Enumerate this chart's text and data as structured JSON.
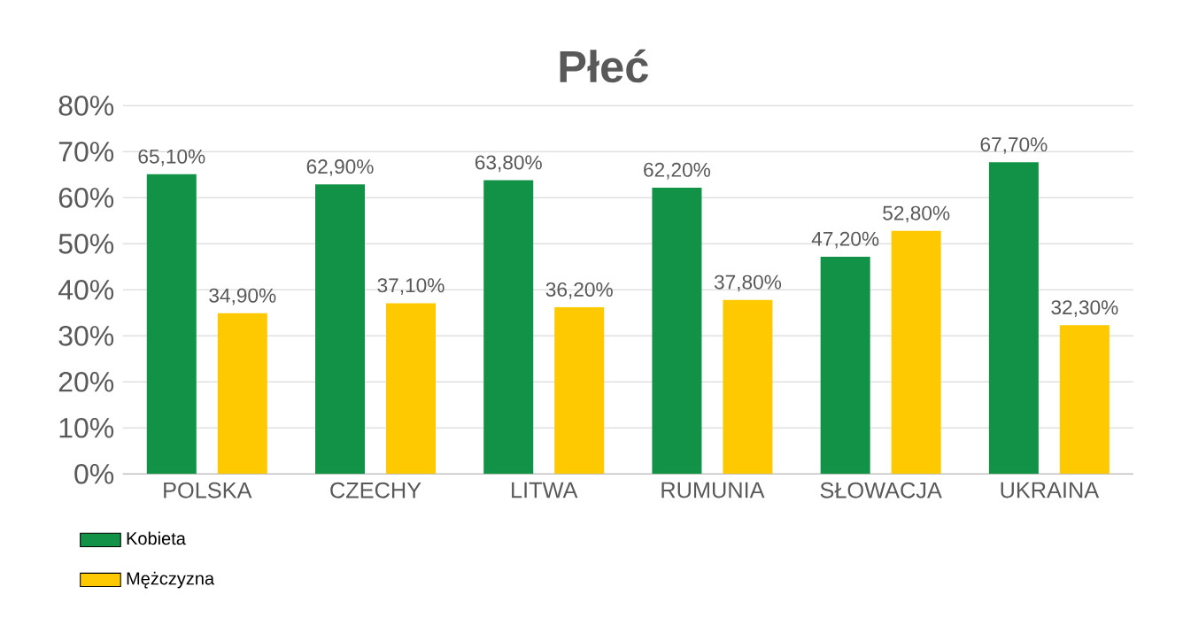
{
  "chart_data": {
    "type": "bar",
    "title": "Płeć",
    "categories": [
      "POLSKA",
      "CZECHY",
      "LITWA",
      "RUMUNIA",
      "SŁOWACJA",
      "UKRAINA"
    ],
    "series": [
      {
        "name": "Kobieta",
        "color": "#129247",
        "values": [
          65.1,
          62.9,
          63.8,
          62.2,
          47.2,
          67.7
        ],
        "value_labels": [
          "65,10%",
          "62,90%",
          "63,80%",
          "62,20%",
          "47,20%",
          "67,70%"
        ]
      },
      {
        "name": "Mężczyzna",
        "color": "#ffc900",
        "values": [
          34.9,
          37.1,
          36.2,
          37.8,
          52.8,
          32.3
        ],
        "value_labels": [
          "34,90%",
          "37,10%",
          "36,20%",
          "37,80%",
          "52,80%",
          "32,30%"
        ]
      }
    ],
    "ylim": [
      0,
      80
    ],
    "yticks": [
      {
        "value": 0,
        "label": "0%"
      },
      {
        "value": 10,
        "label": "10%"
      },
      {
        "value": 20,
        "label": "20%"
      },
      {
        "value": 30,
        "label": "30%"
      },
      {
        "value": 40,
        "label": "40%"
      },
      {
        "value": 50,
        "label": "50%"
      },
      {
        "value": 60,
        "label": "60%"
      },
      {
        "value": 70,
        "label": "70%"
      },
      {
        "value": 80,
        "label": "80%"
      }
    ],
    "grid": "y",
    "legend": "bottom left"
  }
}
